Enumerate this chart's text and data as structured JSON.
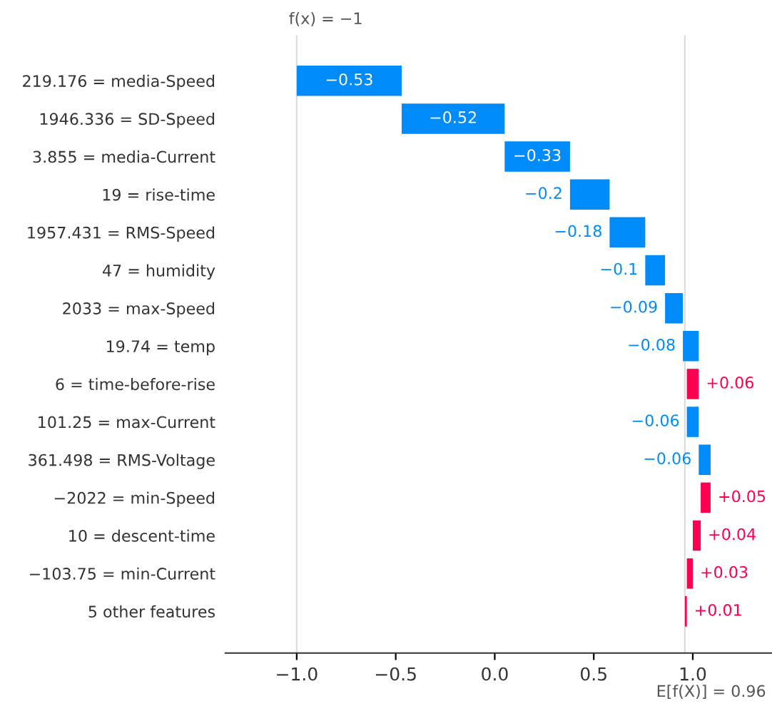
{
  "chart_data": {
    "type": "bar",
    "orientation": "horizontal",
    "categories": [
      "219.176 = media-Speed",
      "1946.336 = SD-Speed",
      "3.855 = media-Current",
      "19 = rise-time",
      "1957.431 = RMS-Speed",
      "47 = humidity",
      "2033 = max-Speed",
      "19.74 = temp",
      "6 = time-before-rise",
      "101.25 = max-Current",
      "361.498 = RMS-Voltage",
      "−2022 = min-Speed",
      "10 = descent-time",
      "−103.75 = min-Current",
      "5 other features"
    ],
    "base": [
      -0.47,
      0.05,
      0.38,
      0.58,
      0.76,
      0.86,
      0.95,
      1.03,
      0.97,
      1.03,
      1.09,
      1.04,
      1.0,
      0.97,
      0.96
    ],
    "values": [
      -0.53,
      -0.52,
      -0.33,
      -0.2,
      -0.18,
      -0.1,
      -0.09,
      -0.08,
      0.06,
      -0.06,
      -0.06,
      0.05,
      0.04,
      0.03,
      0.01
    ],
    "colors": [
      "#008bfb",
      "#008bfb",
      "#008bfb",
      "#008bfb",
      "#008bfb",
      "#008bfb",
      "#008bfb",
      "#008bfb",
      "#ff0051",
      "#008bfb",
      "#008bfb",
      "#ff0051",
      "#ff0051",
      "#ff0051",
      "#ff0051"
    ],
    "value_labels": [
      "−0.53",
      "−0.52",
      "−0.33",
      "−0.2",
      "−0.18",
      "−0.1",
      "−0.09",
      "−0.08",
      "+0.06",
      "−0.06",
      "−0.06",
      "+0.05",
      "+0.04",
      "+0.03",
      "+0.01"
    ],
    "xlim": [
      -1.36,
      1.4
    ],
    "xticks": [
      {
        "value": -1.0,
        "label": "−1.0"
      },
      {
        "value": -0.5,
        "label": "−0.5"
      },
      {
        "value": 0.0,
        "label": "0.0"
      },
      {
        "value": 0.5,
        "label": "0.5"
      },
      {
        "value": 1.0,
        "label": "1.0"
      }
    ],
    "ref_lines": [
      {
        "axis": "x",
        "value": -1,
        "color": "#dddddd"
      },
      {
        "axis": "x",
        "value": 0.96,
        "color": "#dddddd"
      }
    ],
    "annotations": [
      "f(x) = −1",
      "E[f(X)] = 0.96"
    ],
    "grid": false,
    "legend": false
  }
}
